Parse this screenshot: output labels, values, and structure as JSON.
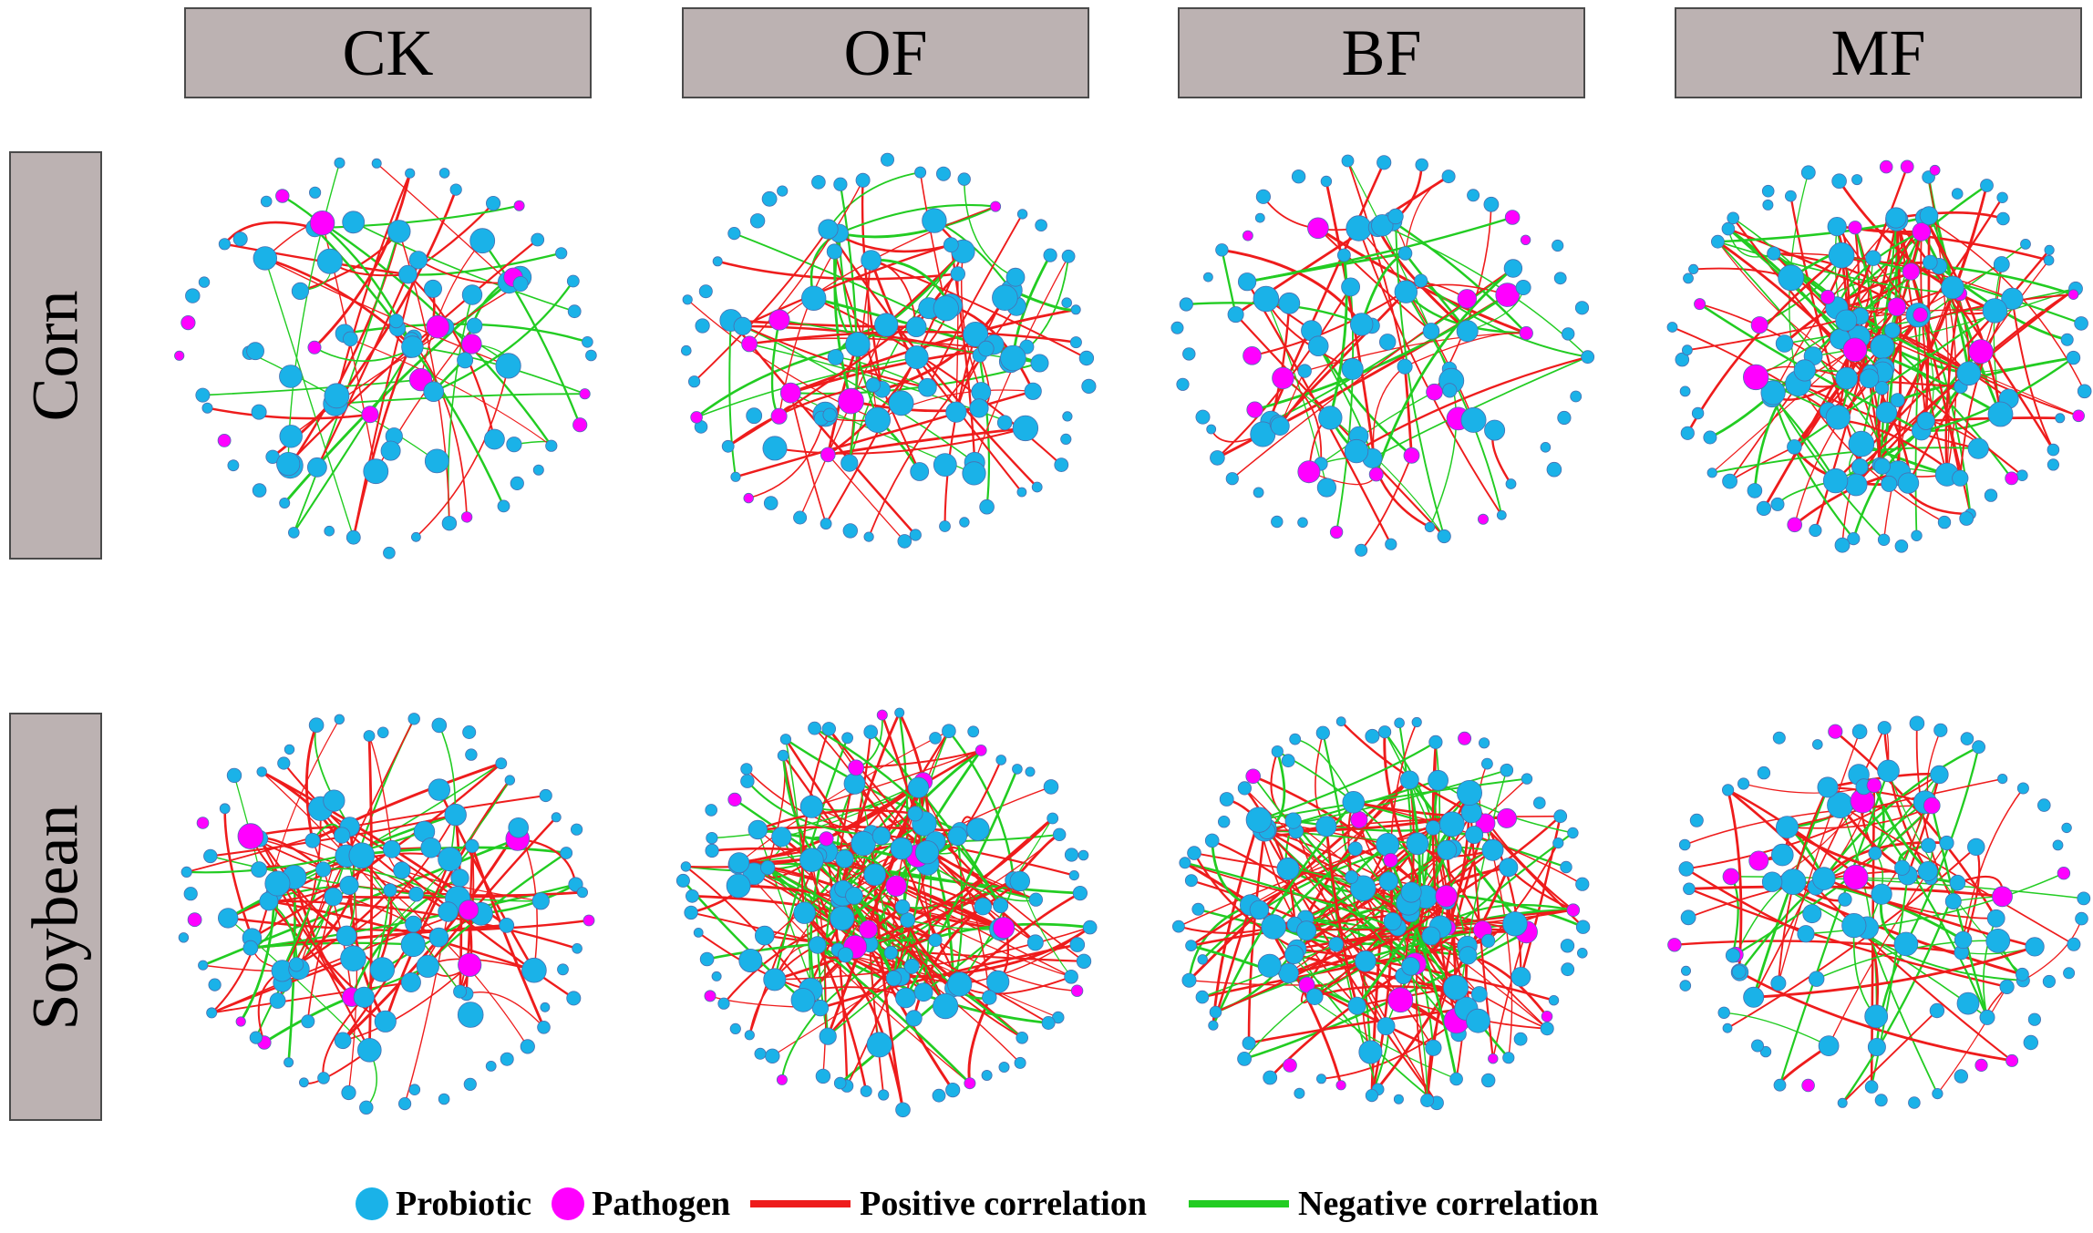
{
  "columns": [
    "CK",
    "OF",
    "BF",
    "MF"
  ],
  "rows": [
    "Corn",
    "Soybean"
  ],
  "legend": {
    "probiotic": "Probiotic",
    "pathogen": "Pathogen",
    "positive": "Positive correlation",
    "negative": "Negative correlation"
  },
  "colors": {
    "probiotic": "#1ab2e8",
    "pathogen": "#ff00ff",
    "positive": "#ee1c1c",
    "negative": "#22cc22",
    "header_bg": "#bcb2b2"
  }
}
